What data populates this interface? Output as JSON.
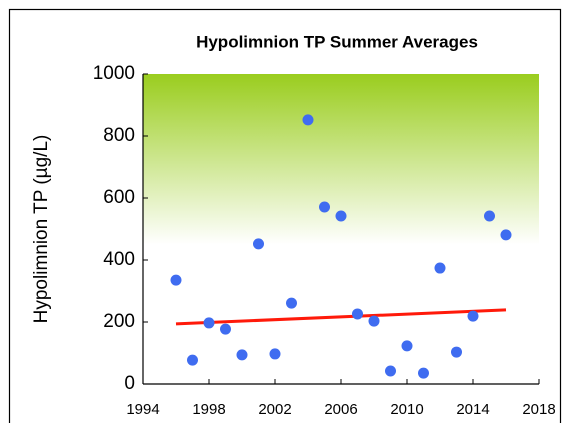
{
  "chart_data": {
    "type": "scatter",
    "title": "Hypolimnion TP Summer Averages",
    "y_label": "Hypolimnion TP (µg/L)",
    "x": [
      1996,
      1997,
      1998,
      1999,
      2000,
      2001,
      2002,
      2003,
      2004,
      2005,
      2006,
      2007,
      2008,
      2009,
      2010,
      2011,
      2012,
      2013,
      2014,
      2015,
      2016
    ],
    "series": [
      {
        "color": "#3f6cf0",
        "values": [
          335,
          77,
          197,
          177,
          94,
          452,
          97,
          261,
          852,
          571,
          542,
          226,
          203,
          42,
          123,
          35,
          374,
          103,
          219,
          542,
          481
        ]
      }
    ],
    "trend": {
      "color": "#ff1a0a",
      "x": [
        1996,
        2016
      ],
      "values": [
        194,
        239
      ]
    },
    "xlim": [
      1994,
      2018
    ],
    "xticks": [
      1994,
      1998,
      2002,
      2006,
      2010,
      2014,
      2018
    ],
    "ylim": [
      0,
      1000
    ],
    "yticks": [
      0,
      200,
      400,
      600,
      800,
      1000
    ]
  }
}
